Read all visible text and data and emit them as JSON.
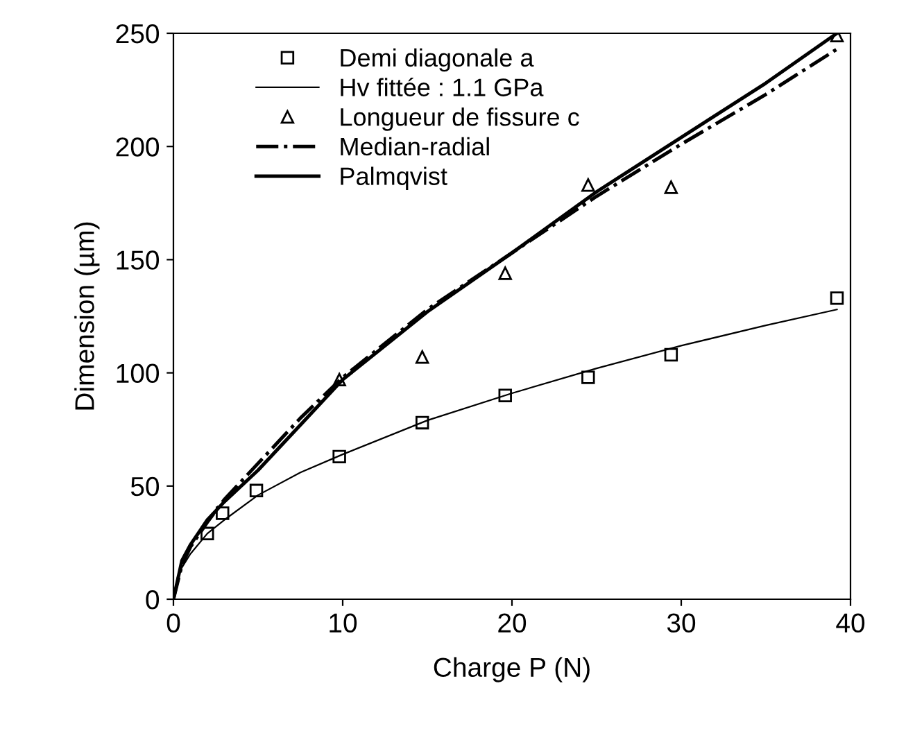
{
  "chart_data": {
    "type": "line",
    "xlabel": "Charge P (N)",
    "ylabel": "Dimension (µm)",
    "xlim": [
      0,
      40
    ],
    "ylim": [
      0,
      250
    ],
    "xticks": [
      0,
      10,
      20,
      30,
      40
    ],
    "yticks": [
      0,
      50,
      100,
      150,
      200,
      250
    ],
    "grid": false,
    "legend": "top left",
    "series": [
      {
        "name": "Demi diagonale a",
        "type": "scatter",
        "marker": "square",
        "color": "#000000",
        "x": [
          2,
          2.9,
          4.9,
          9.8,
          14.7,
          19.6,
          24.5,
          29.4,
          39.2
        ],
        "values": [
          29,
          38,
          48,
          63,
          78,
          90,
          98,
          108,
          133
        ]
      },
      {
        "name": "Hv fittée : 1.1 GPa",
        "marker": "none",
        "line_style": "solid",
        "color": "#000000",
        "x": [
          0,
          0.25,
          0.5,
          1,
          2,
          3,
          5,
          7.5,
          10,
          15,
          20,
          25,
          30,
          35,
          39.2
        ],
        "values": [
          0,
          10,
          14,
          20,
          29,
          35,
          46,
          56,
          64,
          79,
          91,
          102,
          112,
          121,
          128
        ]
      },
      {
        "name": "Longueur de fissure c",
        "type": "scatter",
        "marker": "triangle",
        "color": "#000000",
        "x": [
          9.8,
          14.7,
          19.6,
          24.5,
          29.4,
          39.2
        ],
        "values": [
          97,
          107,
          144,
          183,
          182,
          249
        ]
      },
      {
        "name": "Median-radial",
        "marker": "none",
        "line_style": "dashdot",
        "color": "#000000",
        "x": [
          0,
          0.5,
          1,
          2,
          3,
          5,
          7.5,
          10,
          15,
          20,
          25,
          30,
          35,
          39.2
        ],
        "values": [
          0,
          15,
          23,
          34,
          44,
          60,
          80,
          98,
          128,
          153,
          178,
          201,
          223,
          243
        ]
      },
      {
        "name": "Palmqvist",
        "marker": "none",
        "line_style": "solid",
        "color": "#000000",
        "x": [
          0,
          0.5,
          1,
          2,
          3,
          5,
          7.5,
          10,
          15,
          20,
          25,
          30,
          35,
          39.2
        ],
        "values": [
          0,
          17,
          24,
          35,
          43,
          57,
          77,
          97,
          127,
          153,
          180,
          204,
          228,
          250
        ]
      }
    ]
  }
}
